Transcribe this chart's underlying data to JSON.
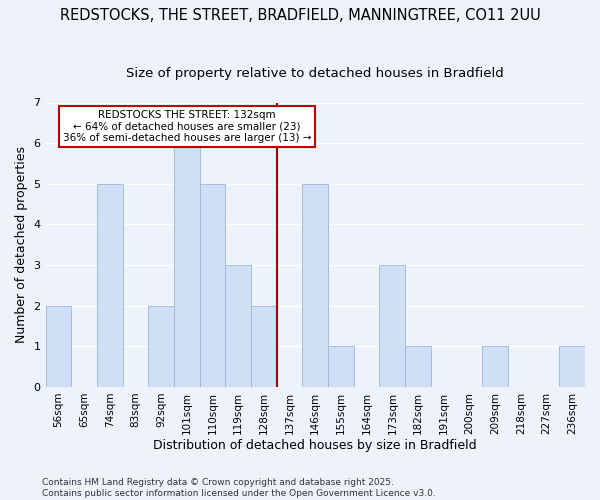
{
  "title": "REDSTOCKS, THE STREET, BRADFIELD, MANNINGTREE, CO11 2UU",
  "subtitle": "Size of property relative to detached houses in Bradfield",
  "xlabel": "Distribution of detached houses by size in Bradfield",
  "ylabel": "Number of detached properties",
  "categories": [
    "56sqm",
    "65sqm",
    "74sqm",
    "83sqm",
    "92sqm",
    "101sqm",
    "110sqm",
    "119sqm",
    "128sqm",
    "137sqm",
    "146sqm",
    "155sqm",
    "164sqm",
    "173sqm",
    "182sqm",
    "191sqm",
    "200sqm",
    "209sqm",
    "218sqm",
    "227sqm",
    "236sqm"
  ],
  "values": [
    2,
    0,
    5,
    0,
    2,
    6,
    5,
    3,
    2,
    0,
    5,
    1,
    0,
    3,
    1,
    0,
    0,
    1,
    0,
    0,
    1
  ],
  "bar_color": "#cfdff5",
  "bar_edge_color": "#9ab8d8",
  "red_line_index": 8,
  "ylim": [
    0,
    7
  ],
  "yticks": [
    0,
    1,
    2,
    3,
    4,
    5,
    6,
    7
  ],
  "annotation_text_line1": "REDSTOCKS THE STREET: 132sqm",
  "annotation_text_line2": "← 64% of detached houses are smaller (23)",
  "annotation_text_line3": "36% of semi-detached houses are larger (13) →",
  "annotation_box_facecolor": "#ffffff",
  "annotation_box_edgecolor": "#bb0000",
  "footer_text": "Contains HM Land Registry data © Crown copyright and database right 2025.\nContains public sector information licensed under the Open Government Licence v3.0.",
  "background_color": "#edf2fc",
  "grid_color": "#ffffff",
  "red_line_color": "#aa0000",
  "title_fontsize": 10.5,
  "subtitle_fontsize": 9.5,
  "tick_fontsize": 7.5,
  "ylabel_fontsize": 9,
  "xlabel_fontsize": 9,
  "footer_fontsize": 6.5
}
